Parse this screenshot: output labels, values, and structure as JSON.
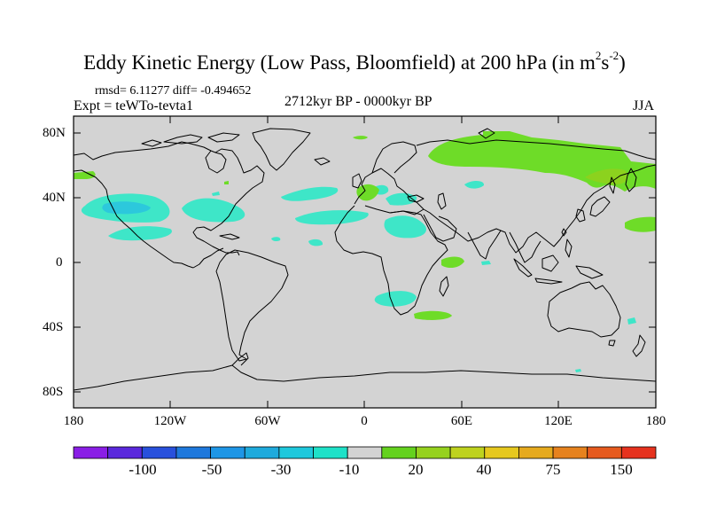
{
  "title": {
    "main": "Eddy Kinetic Energy (Low Pass, Bloomfield) at 200 hPa (in m",
    "sup1": "2",
    "mid": "s",
    "sup2": "-2",
    "end": ")"
  },
  "stats_line": "rmsd= 6.11277 diff= -0.494652",
  "experiment": "Expt = teWTo-tevta1",
  "period": "2712kyr BP - 0000kyr BP",
  "season": "JJA",
  "map": {
    "lat_labels": [
      "80N",
      "40N",
      "0",
      "40S",
      "80S"
    ],
    "lon_labels": [
      "180",
      "120W",
      "60W",
      "0",
      "60E",
      "120E",
      "180"
    ],
    "ocean_color": "#d3d3d3",
    "coast_color": "#000000"
  },
  "colorbar": {
    "colors": [
      "#8a1ee6",
      "#5a28dc",
      "#2850dc",
      "#1e78dc",
      "#1e96e6",
      "#1eaadc",
      "#1ec8dc",
      "#1ee1c8",
      "#d3d3d3",
      "#64d21e",
      "#96d21e",
      "#bed21e",
      "#e6c81e",
      "#e6aa1e",
      "#e6821e",
      "#e65a1e",
      "#e6321e"
    ],
    "labels": [
      "-100",
      "-50",
      "-30",
      "-10",
      "20",
      "40",
      "75",
      "150"
    ]
  },
  "anomalies": {
    "negative_color": "#3ee6c8",
    "negative_deep_color": "#2cc8dc",
    "positive_color": "#6edc28",
    "positive_dark_color": "#8cd21e"
  }
}
